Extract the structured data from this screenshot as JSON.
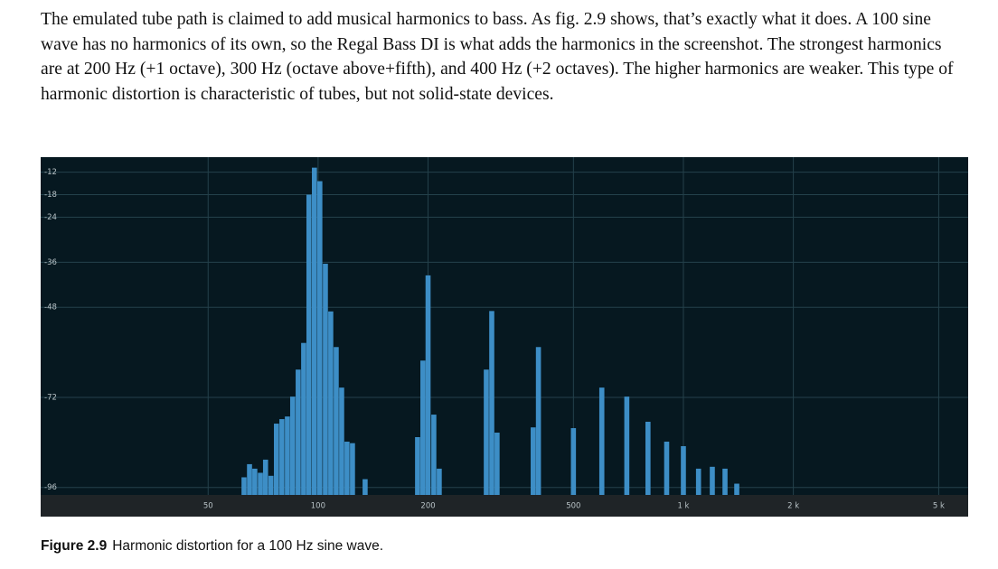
{
  "paragraph": "The emulated tube path is claimed to add musical harmonics to bass. As fig. 2.9 shows, that’s exactly what it does. A 100 sine wave has no harmonics of its own, so the Regal Bass DI is what adds the harmonics in the screenshot. The strongest harmonics are at 200 Hz (+1 octave), 300 Hz (octave above+fifth), and 400 Hz (+2 octaves). The higher harmonics are weaker. This type of harmonic distortion is characteristic of tubes, but not solid-state devices.",
  "chart_data": {
    "type": "bar",
    "x_scale": "log",
    "color": "#3d8ec6",
    "grid": true,
    "x": [
      62.7,
      64.9,
      67.1,
      69.5,
      71.8,
      74.3,
      76.9,
      79.6,
      82.4,
      85.2,
      88.2,
      91.3,
      94.4,
      97.7,
      101.1,
      104.7,
      108.3,
      112.1,
      116.0,
      120.0,
      124.2,
      134.5,
      187.2,
      193.6,
      200,
      207.4,
      214.6,
      288.7,
      298.8,
      309,
      388,
      401,
      500,
      598,
      700,
      800,
      900,
      1000,
      1100,
      1200,
      1300,
      1400
    ],
    "values": [
      -93.3,
      -89.8,
      -91,
      -92.1,
      -88.6,
      -92.9,
      -79,
      -77.8,
      -77.1,
      -71.8,
      -64.6,
      -57.5,
      -18,
      -10.8,
      -14.4,
      -36.4,
      -49.1,
      -58.6,
      -69.4,
      -83.8,
      -84.2,
      -93.8,
      -82.6,
      -62.2,
      -39.5,
      -76.6,
      -91,
      -64.6,
      -49,
      -81.4,
      -80,
      -58.6,
      -80.2,
      -69.4,
      -71.8,
      -78.5,
      -83.8,
      -85,
      -91,
      -90.5,
      -91,
      -95
    ],
    "xlim": [
      17.4,
      6020
    ],
    "ylim": [
      -98,
      -8
    ],
    "xticks": [
      50,
      100,
      200,
      500,
      {
        "value": 1000,
        "label": "1 k"
      },
      {
        "value": 2000,
        "label": "2 k"
      },
      {
        "value": 5000,
        "label": "5 k"
      }
    ],
    "yticks": [
      -12,
      -18,
      -24,
      -36,
      -48,
      -72,
      -96
    ]
  },
  "caption": {
    "label": "Figure 2.9",
    "text": "Harmonic distortion for a 100 Hz sine wave."
  }
}
